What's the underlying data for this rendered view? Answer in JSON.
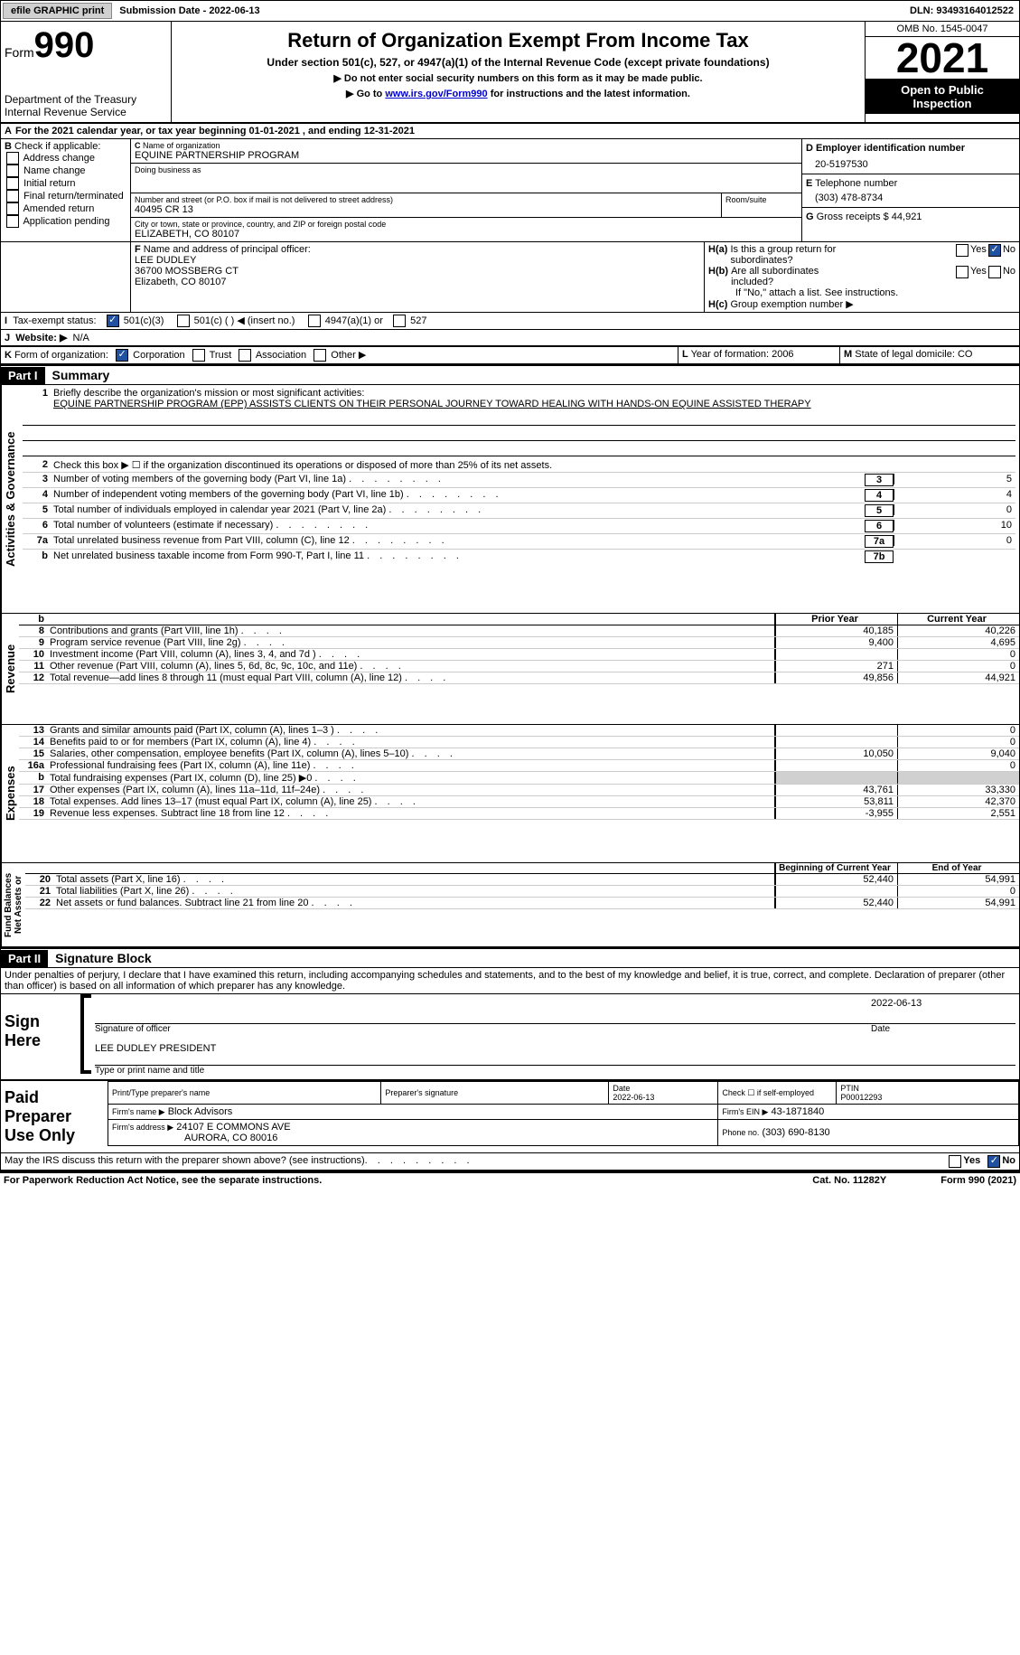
{
  "topbar": {
    "efile": "efile GRAPHIC print",
    "submission_label": "Submission Date - 2022-06-13",
    "dln": "DLN: 93493164012522"
  },
  "header": {
    "form_prefix": "Form",
    "form_num": "990",
    "title": "Return of Organization Exempt From Income Tax",
    "subtitle": "Under section 501(c), 527, or 4947(a)(1) of the Internal Revenue Code (except private foundations)",
    "note1": "▶ Do not enter social security numbers on this form as it may be made public.",
    "note2_pre": "▶ Go to ",
    "note2_link": "www.irs.gov/Form990",
    "note2_post": " for instructions and the latest information.",
    "dept": "Department of the Treasury",
    "irs": "Internal Revenue Service",
    "omb": "OMB No. 1545-0047",
    "year": "2021",
    "inspect1": "Open to Public",
    "inspect2": "Inspection"
  },
  "A": {
    "text": "For the 2021 calendar year, or tax year beginning 01-01-2021     , and ending 12-31-2021"
  },
  "B": {
    "label": "Check if applicable:",
    "opts": [
      "Address change",
      "Name change",
      "Initial return",
      "Final return/terminated",
      "Amended return",
      "Application pending"
    ]
  },
  "C": {
    "label": "Name of organization",
    "name": "EQUINE PARTNERSHIP PROGRAM",
    "dba_label": "Doing business as",
    "street_label": "Number and street (or P.O. box if mail is not delivered to street address)",
    "room_label": "Room/suite",
    "street": "40495 CR 13",
    "city_label": "City or town, state or province, country, and ZIP or foreign postal code",
    "city": "ELIZABETH, CO  80107"
  },
  "D": {
    "label": "Employer identification number",
    "val": "20-5197530"
  },
  "E": {
    "label": "Telephone number",
    "val": "(303) 478-8734"
  },
  "G": {
    "label": "Gross receipts $",
    "val": "44,921"
  },
  "F": {
    "label": "Name and address of principal officer:",
    "name": "LEE DUDLEY",
    "addr1": "36700 MOSSBERG CT",
    "addr2": "Elizabeth, CO  80107"
  },
  "H": {
    "a": "Is this a group return for",
    "a2": "subordinates?",
    "b": "Are all subordinates",
    "b2": "included?",
    "note": "If \"No,\" attach a list. See instructions.",
    "c": "Group exemption number ▶",
    "yes": "Yes",
    "no": "No"
  },
  "I": {
    "label": "Tax-exempt status:",
    "opts": [
      "501(c)(3)",
      "501(c) (  ) ◀ (insert no.)",
      "4947(a)(1) or",
      "527"
    ]
  },
  "J": {
    "label": "Website: ▶",
    "val": "N/A"
  },
  "K": {
    "label": "Form of organization:",
    "opts": [
      "Corporation",
      "Trust",
      "Association",
      "Other ▶"
    ]
  },
  "L": {
    "label": "Year of formation:",
    "val": "2006"
  },
  "M": {
    "label": "State of legal domicile:",
    "val": "CO"
  },
  "part1": {
    "header": "Part I",
    "title": "Summary",
    "l1_label": "Briefly describe the organization's mission or most significant activities:",
    "l1_text": "EQUINE PARTNERSHIP PROGRAM (EPP) ASSISTS CLIENTS ON THEIR PERSONAL JOURNEY TOWARD HEALING WITH HANDS-ON EQUINE ASSISTED THERAPY",
    "l2": "Check this box ▶ ☐ if the organization discontinued its operations or disposed of more than 25% of its net assets.",
    "lines": [
      {
        "n": "3",
        "t": "Number of voting members of the governing body (Part VI, line 1a)",
        "box": "3",
        "v": "5"
      },
      {
        "n": "4",
        "t": "Number of independent voting members of the governing body (Part VI, line 1b)",
        "box": "4",
        "v": "4"
      },
      {
        "n": "5",
        "t": "Total number of individuals employed in calendar year 2021 (Part V, line 2a)",
        "box": "5",
        "v": "0"
      },
      {
        "n": "6",
        "t": "Total number of volunteers (estimate if necessary)",
        "box": "6",
        "v": "10"
      },
      {
        "n": "7a",
        "t": "Total unrelated business revenue from Part VIII, column (C), line 12",
        "box": "7a",
        "v": "0"
      },
      {
        "n": "b",
        "t": "Net unrelated business taxable income from Form 990-T, Part I, line 11",
        "box": "7b",
        "v": ""
      }
    ],
    "col_prior": "Prior Year",
    "col_curr": "Current Year",
    "rev_lines": [
      {
        "n": "8",
        "t": "Contributions and grants (Part VIII, line 1h)",
        "p": "40,185",
        "c": "40,226"
      },
      {
        "n": "9",
        "t": "Program service revenue (Part VIII, line 2g)",
        "p": "9,400",
        "c": "4,695"
      },
      {
        "n": "10",
        "t": "Investment income (Part VIII, column (A), lines 3, 4, and 7d )",
        "p": "",
        "c": "0"
      },
      {
        "n": "11",
        "t": "Other revenue (Part VIII, column (A), lines 5, 6d, 8c, 9c, 10c, and 11e)",
        "p": "271",
        "c": "0"
      },
      {
        "n": "12",
        "t": "Total revenue—add lines 8 through 11 (must equal Part VIII, column (A), line 12)",
        "p": "49,856",
        "c": "44,921"
      }
    ],
    "exp_lines": [
      {
        "n": "13",
        "t": "Grants and similar amounts paid (Part IX, column (A), lines 1–3 )",
        "p": "",
        "c": "0"
      },
      {
        "n": "14",
        "t": "Benefits paid to or for members (Part IX, column (A), line 4)",
        "p": "",
        "c": "0"
      },
      {
        "n": "15",
        "t": "Salaries, other compensation, employee benefits (Part IX, column (A), lines 5–10)",
        "p": "10,050",
        "c": "9,040"
      },
      {
        "n": "16a",
        "t": "Professional fundraising fees (Part IX, column (A), line 11e)",
        "p": "",
        "c": "0"
      },
      {
        "n": "b",
        "t": "Total fundraising expenses (Part IX, column (D), line 25) ▶0",
        "p": "SHADE",
        "c": "SHADE"
      },
      {
        "n": "17",
        "t": "Other expenses (Part IX, column (A), lines 11a–11d, 11f–24e)",
        "p": "43,761",
        "c": "33,330"
      },
      {
        "n": "18",
        "t": "Total expenses. Add lines 13–17 (must equal Part IX, column (A), line 25)",
        "p": "53,811",
        "c": "42,370"
      },
      {
        "n": "19",
        "t": "Revenue less expenses. Subtract line 18 from line 12",
        "p": "-3,955",
        "c": "2,551"
      }
    ],
    "na_header_b": "Beginning of Current Year",
    "na_header_e": "End of Year",
    "na_lines": [
      {
        "n": "20",
        "t": "Total assets (Part X, line 16)",
        "p": "52,440",
        "c": "54,991"
      },
      {
        "n": "21",
        "t": "Total liabilities (Part X, line 26)",
        "p": "",
        "c": "0"
      },
      {
        "n": "22",
        "t": "Net assets or fund balances. Subtract line 21 from line 20",
        "p": "52,440",
        "c": "54,991"
      }
    ],
    "vlabels": {
      "ag": "Activities & Governance",
      "rev": "Revenue",
      "exp": "Expenses",
      "na": "Net Assets or\nFund Balances"
    }
  },
  "part2": {
    "header": "Part II",
    "title": "Signature Block",
    "declaration": "Under penalties of perjury, I declare that I have examined this return, including accompanying schedules and statements, and to the best of my knowledge and belief, it is true, correct, and complete. Declaration of preparer (other than officer) is based on all information of which preparer has any knowledge.",
    "sign_here": "Sign Here",
    "sig_officer": "Signature of officer",
    "date_val": "2022-06-13",
    "date_label": "Date",
    "name_title": "LEE DUDLEY  PRESIDENT",
    "name_label": "Type or print name and title",
    "paid": "Paid Preparer Use Only",
    "p_name_label": "Print/Type preparer's name",
    "p_sig_label": "Preparer's signature",
    "p_date_label": "Date",
    "p_date": "2022-06-13",
    "p_check": "Check ☐ if self-employed",
    "ptin_label": "PTIN",
    "ptin": "P00012293",
    "firm_name_label": "Firm's name    ▶",
    "firm_name": "Block Advisors",
    "firm_ein_label": "Firm's EIN ▶",
    "firm_ein": "43-1871840",
    "firm_addr_label": "Firm's address ▶",
    "firm_addr1": "24107 E COMMONS AVE",
    "firm_addr2": "AURORA, CO  80016",
    "firm_phone_label": "Phone no.",
    "firm_phone": "(303) 690-8130",
    "discuss": "May the IRS discuss this return with the preparer shown above? (see instructions)"
  },
  "footer": {
    "pra": "For Paperwork Reduction Act Notice, see the separate instructions.",
    "cat": "Cat. No. 11282Y",
    "form": "Form 990 (2021)"
  }
}
